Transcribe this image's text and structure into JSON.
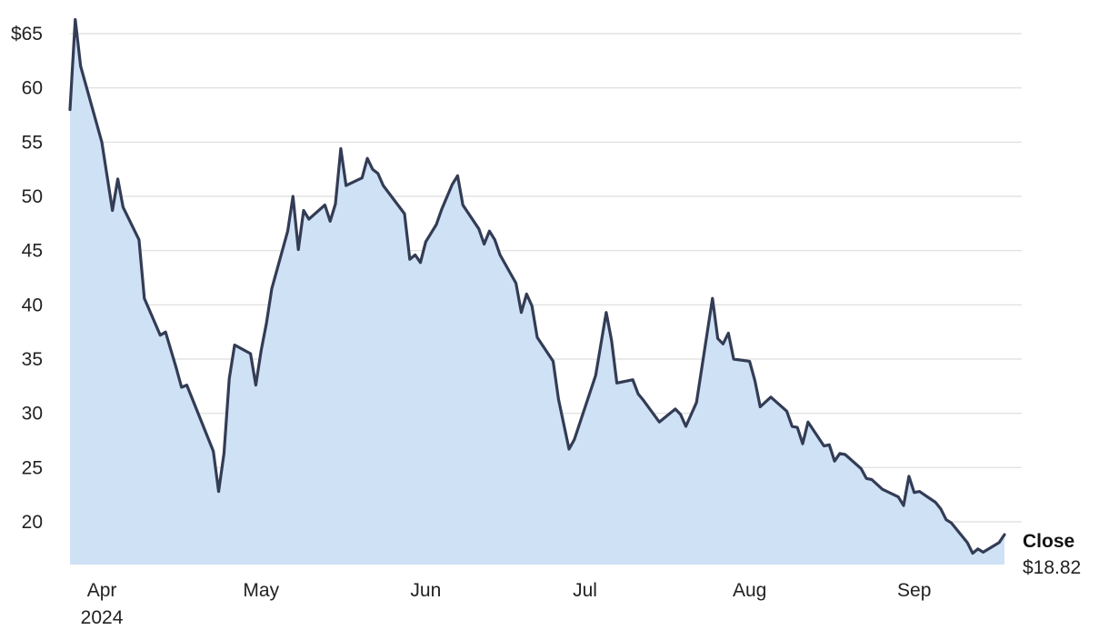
{
  "chart_data": {
    "type": "area",
    "title": "",
    "xlabel": "",
    "ylabel": "",
    "ylim": [
      15.8,
      66.5
    ],
    "grid": true,
    "y_ticks": [
      {
        "value": 65,
        "label": "$65"
      },
      {
        "value": 60,
        "label": "60"
      },
      {
        "value": 55,
        "label": "55"
      },
      {
        "value": 50,
        "label": "50"
      },
      {
        "value": 45,
        "label": "45"
      },
      {
        "value": 40,
        "label": "40"
      },
      {
        "value": 35,
        "label": "35"
      },
      {
        "value": 30,
        "label": "30"
      },
      {
        "value": 25,
        "label": "25"
      },
      {
        "value": 20,
        "label": "20"
      }
    ],
    "x_ticks": [
      {
        "date": "2024-04-01",
        "label": "Apr",
        "sublabel": "2024"
      },
      {
        "date": "2024-05-01",
        "label": "May"
      },
      {
        "date": "2024-06-01",
        "label": "Jun"
      },
      {
        "date": "2024-07-01",
        "label": "Jul"
      },
      {
        "date": "2024-08-01",
        "label": "Aug"
      },
      {
        "date": "2024-09-01",
        "label": "Sep"
      }
    ],
    "x_domain": [
      "2024-03-26",
      "2024-09-12"
    ],
    "colors": {
      "line": "#333c55",
      "fill": "#cfe1f5",
      "grid": "#dddddd"
    },
    "series": [
      {
        "name": "Close",
        "end_value_label": "$18.82",
        "points": [
          [
            "2024-03-26",
            58.0
          ],
          [
            "2024-03-27",
            66.3
          ],
          [
            "2024-03-28",
            62.0
          ],
          [
            "2024-04-01",
            55.0
          ],
          [
            "2024-04-03",
            48.7
          ],
          [
            "2024-04-04",
            51.6
          ],
          [
            "2024-04-05",
            49.0
          ],
          [
            "2024-04-08",
            46.0
          ],
          [
            "2024-04-09",
            40.6
          ],
          [
            "2024-04-12",
            37.2
          ],
          [
            "2024-04-13",
            37.5
          ],
          [
            "2024-04-15",
            34.2
          ],
          [
            "2024-04-16",
            32.4
          ],
          [
            "2024-04-17",
            32.6
          ],
          [
            "2024-04-22",
            26.5
          ],
          [
            "2024-04-23",
            22.8
          ],
          [
            "2024-04-24",
            26.3
          ],
          [
            "2024-04-25",
            33.2
          ],
          [
            "2024-04-26",
            36.3
          ],
          [
            "2024-04-29",
            35.5
          ],
          [
            "2024-04-30",
            32.6
          ],
          [
            "2024-05-01",
            35.8
          ],
          [
            "2024-05-02",
            38.3
          ],
          [
            "2024-05-03",
            41.5
          ],
          [
            "2024-05-06",
            46.8
          ],
          [
            "2024-05-07",
            50.0
          ],
          [
            "2024-05-08",
            45.1
          ],
          [
            "2024-05-09",
            48.7
          ],
          [
            "2024-05-10",
            47.9
          ],
          [
            "2024-05-13",
            49.2
          ],
          [
            "2024-05-14",
            47.7
          ],
          [
            "2024-05-15",
            49.3
          ],
          [
            "2024-05-16",
            54.4
          ],
          [
            "2024-05-17",
            51.0
          ],
          [
            "2024-05-20",
            51.7
          ],
          [
            "2024-05-21",
            53.5
          ],
          [
            "2024-05-22",
            52.5
          ],
          [
            "2024-05-23",
            52.1
          ],
          [
            "2024-05-24",
            51.0
          ],
          [
            "2024-05-28",
            48.4
          ],
          [
            "2024-05-29",
            44.2
          ],
          [
            "2024-05-30",
            44.6
          ],
          [
            "2024-05-31",
            43.9
          ],
          [
            "2024-06-01",
            45.8
          ],
          [
            "2024-06-03",
            47.4
          ],
          [
            "2024-06-04",
            48.8
          ],
          [
            "2024-06-06",
            51.1
          ],
          [
            "2024-06-07",
            51.9
          ],
          [
            "2024-06-08",
            49.2
          ],
          [
            "2024-06-11",
            47.0
          ],
          [
            "2024-06-12",
            45.6
          ],
          [
            "2024-06-13",
            46.8
          ],
          [
            "2024-06-14",
            46.0
          ],
          [
            "2024-06-15",
            44.6
          ],
          [
            "2024-06-18",
            42.0
          ],
          [
            "2024-06-19",
            39.3
          ],
          [
            "2024-06-20",
            41.0
          ],
          [
            "2024-06-21",
            39.9
          ],
          [
            "2024-06-22",
            37.0
          ],
          [
            "2024-06-25",
            34.8
          ],
          [
            "2024-06-26",
            31.3
          ],
          [
            "2024-06-28",
            26.7
          ],
          [
            "2024-06-29",
            27.6
          ],
          [
            "2024-07-03",
            33.5
          ],
          [
            "2024-07-05",
            39.3
          ],
          [
            "2024-07-06",
            36.7
          ],
          [
            "2024-07-07",
            32.8
          ],
          [
            "2024-07-09",
            33.0
          ],
          [
            "2024-07-10",
            33.1
          ],
          [
            "2024-07-11",
            31.8
          ],
          [
            "2024-07-12",
            31.2
          ],
          [
            "2024-07-15",
            29.2
          ],
          [
            "2024-07-18",
            30.4
          ],
          [
            "2024-07-19",
            29.9
          ],
          [
            "2024-07-20",
            28.8
          ],
          [
            "2024-07-22",
            31.0
          ],
          [
            "2024-07-25",
            40.6
          ],
          [
            "2024-07-26",
            36.9
          ],
          [
            "2024-07-27",
            36.4
          ],
          [
            "2024-07-28",
            37.4
          ],
          [
            "2024-07-29",
            35.0
          ],
          [
            "2024-08-01",
            34.8
          ],
          [
            "2024-08-02",
            33.0
          ],
          [
            "2024-08-03",
            30.6
          ],
          [
            "2024-08-05",
            31.5
          ],
          [
            "2024-08-08",
            30.2
          ],
          [
            "2024-08-09",
            28.8
          ],
          [
            "2024-08-10",
            28.7
          ],
          [
            "2024-08-11",
            27.2
          ],
          [
            "2024-08-12",
            29.2
          ],
          [
            "2024-08-15",
            27.0
          ],
          [
            "2024-08-16",
            27.1
          ],
          [
            "2024-08-17",
            25.6
          ],
          [
            "2024-08-18",
            26.3
          ],
          [
            "2024-08-19",
            26.2
          ],
          [
            "2024-08-22",
            24.9
          ],
          [
            "2024-08-23",
            24.0
          ],
          [
            "2024-08-24",
            23.9
          ],
          [
            "2024-08-26",
            23.0
          ],
          [
            "2024-08-29",
            22.3
          ],
          [
            "2024-08-30",
            21.5
          ],
          [
            "2024-08-31",
            24.2
          ],
          [
            "2024-09-01",
            22.7
          ],
          [
            "2024-09-02",
            22.8
          ],
          [
            "2024-09-05",
            21.8
          ],
          [
            "2024-09-06",
            21.2
          ],
          [
            "2024-09-07",
            20.2
          ],
          [
            "2024-09-08",
            19.9
          ],
          [
            "2024-09-11",
            18.1
          ],
          [
            "2024-09-12",
            17.1
          ],
          [
            "2024-09-13",
            17.5
          ],
          [
            "2024-09-14",
            17.2
          ],
          [
            "2024-09-17",
            18.1
          ],
          [
            "2024-09-18",
            18.82
          ]
        ]
      }
    ]
  }
}
